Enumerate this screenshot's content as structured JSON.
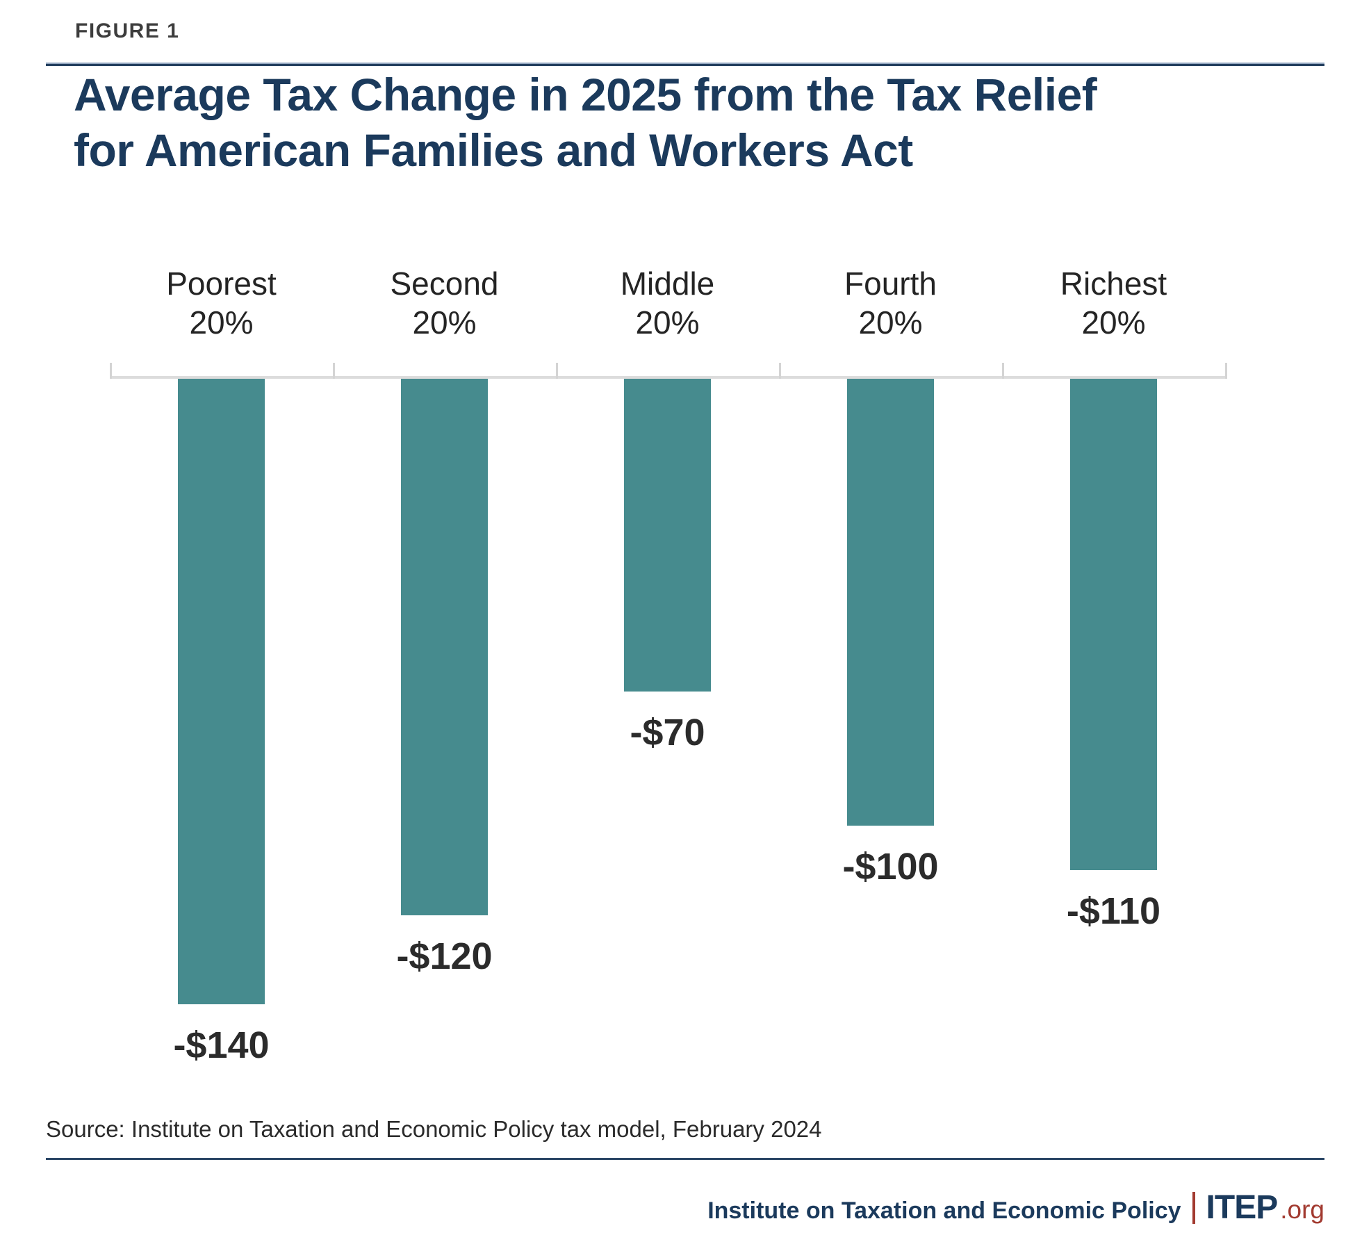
{
  "figure_label": "FIGURE 1",
  "title": {
    "full": "Average Tax Change in 2025 from the Tax Relief for American Families and Workers Act",
    "line1": "Average Tax Change in 2025 from the Tax Relief",
    "line2": "for American Families and Workers Act"
  },
  "chart_data": {
    "type": "bar",
    "title": "Average Tax Change in 2025 from the Tax Relief for American Families and Workers Act",
    "categories": [
      "Poorest 20%",
      "Second 20%",
      "Middle 20%",
      "Fourth 20%",
      "Richest 20%"
    ],
    "values": [
      -140,
      -120,
      -70,
      -100,
      -110
    ],
    "value_labels": [
      "-$140",
      "-$120",
      "-$70",
      "-$100",
      "-$110"
    ],
    "xlabel": "",
    "ylabel": "",
    "ylim": [
      -150,
      0
    ],
    "grid": false,
    "legend": false,
    "orientation": "vertical-negative-from-zero-baseline"
  },
  "source_note": "Source: Institute on Taxation and Economic Policy tax model, February 2024",
  "footer": {
    "org_name": "Institute on Taxation and Economic Policy",
    "brand": "ITEP",
    "brand_suffix": ".org"
  },
  "colors": {
    "bar_teal": "#468b8e",
    "navy": "#1b3a5c",
    "brand_red": "#a23a30",
    "rule_navy": "#2b4666",
    "axis_gray": "#dcdcdc",
    "tick_gray": "#d4d4d4"
  }
}
